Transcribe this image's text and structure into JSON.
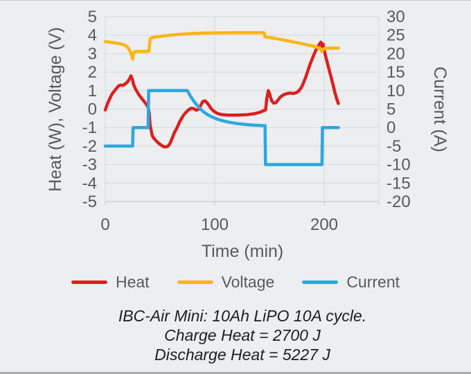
{
  "chart_data": {
    "type": "line",
    "xlabel": "Time (min)",
    "ylabel_left": "Heat (W), Voltage (V)",
    "ylabel_right": "Current (A)",
    "x_range": [
      0,
      250
    ],
    "x_ticks": [
      0,
      100,
      200
    ],
    "left_range": [
      -5,
      5
    ],
    "left_ticks": [
      5,
      4,
      3,
      2,
      1,
      0,
      -1,
      -2,
      -3,
      -4,
      -5
    ],
    "right_range": [
      -20,
      30
    ],
    "right_ticks": [
      30,
      25,
      20,
      15,
      10,
      5,
      0,
      -5,
      -10,
      -15,
      -20
    ],
    "grid": true,
    "legend_position": "bottom",
    "series": [
      {
        "name": "Heat",
        "axis": "left",
        "color": "#dc1f1f",
        "points": [
          [
            0,
            -0.05
          ],
          [
            2,
            0.3
          ],
          [
            4,
            0.55
          ],
          [
            6,
            0.8
          ],
          [
            8,
            0.95
          ],
          [
            10,
            1.1
          ],
          [
            12,
            1.25
          ],
          [
            14,
            1.3
          ],
          [
            16,
            1.28
          ],
          [
            18,
            1.35
          ],
          [
            20,
            1.45
          ],
          [
            22,
            1.62
          ],
          [
            23.5,
            1.8
          ],
          [
            25,
            1.55
          ],
          [
            26,
            1.3
          ],
          [
            28,
            1.05
          ],
          [
            31,
            0.75
          ],
          [
            34,
            0.52
          ],
          [
            37,
            0.3
          ],
          [
            39,
            0.12
          ],
          [
            40,
            -0.15
          ],
          [
            41,
            -0.9
          ],
          [
            43,
            -1.45
          ],
          [
            45,
            -1.62
          ],
          [
            48,
            -1.8
          ],
          [
            51,
            -1.95
          ],
          [
            54,
            -2.05
          ],
          [
            57,
            -2.02
          ],
          [
            59,
            -1.88
          ],
          [
            61,
            -1.6
          ],
          [
            63,
            -1.3
          ],
          [
            66,
            -0.95
          ],
          [
            68,
            -0.68
          ],
          [
            71,
            -0.38
          ],
          [
            73,
            -0.22
          ],
          [
            75,
            -0.1
          ],
          [
            77,
            0.0
          ],
          [
            79,
            0.05
          ],
          [
            81,
            0.02
          ],
          [
            83,
            -0.06
          ],
          [
            85,
            -0.02
          ],
          [
            87,
            0.18
          ],
          [
            89,
            0.4
          ],
          [
            91,
            0.45
          ],
          [
            93,
            0.35
          ],
          [
            95,
            0.18
          ],
          [
            97,
            0.0
          ],
          [
            100,
            -0.15
          ],
          [
            103,
            -0.25
          ],
          [
            107,
            -0.3
          ],
          [
            112,
            -0.33
          ],
          [
            118,
            -0.33
          ],
          [
            124,
            -0.32
          ],
          [
            130,
            -0.3
          ],
          [
            136,
            -0.25
          ],
          [
            141,
            -0.18
          ],
          [
            145,
            -0.08
          ],
          [
            146.5,
            -0.05
          ],
          [
            147.5,
            0.55
          ],
          [
            149,
            1.0
          ],
          [
            150.5,
            0.75
          ],
          [
            152,
            0.45
          ],
          [
            154,
            0.32
          ],
          [
            156,
            0.35
          ],
          [
            158,
            0.5
          ],
          [
            160,
            0.65
          ],
          [
            163,
            0.78
          ],
          [
            166,
            0.84
          ],
          [
            169,
            0.87
          ],
          [
            171,
            0.84
          ],
          [
            173,
            0.86
          ],
          [
            175,
            0.9
          ],
          [
            177,
            1.0
          ],
          [
            179,
            1.15
          ],
          [
            181,
            1.4
          ],
          [
            183,
            1.7
          ],
          [
            185,
            2.05
          ],
          [
            187,
            2.4
          ],
          [
            189,
            2.7
          ],
          [
            191,
            3.0
          ],
          [
            193,
            3.25
          ],
          [
            195,
            3.45
          ],
          [
            197,
            3.62
          ],
          [
            198,
            3.4
          ],
          [
            199,
            3.52
          ],
          [
            200,
            3.2
          ],
          [
            202,
            2.7
          ],
          [
            204,
            2.25
          ],
          [
            206,
            1.8
          ],
          [
            208,
            1.35
          ],
          [
            210,
            0.85
          ],
          [
            212,
            0.45
          ],
          [
            213,
            0.3
          ]
        ]
      },
      {
        "name": "Voltage",
        "axis": "left",
        "color": "#fbb614",
        "points": [
          [
            0,
            3.65
          ],
          [
            4,
            3.62
          ],
          [
            8,
            3.58
          ],
          [
            12,
            3.55
          ],
          [
            16,
            3.5
          ],
          [
            19,
            3.42
          ],
          [
            21,
            3.3
          ],
          [
            23,
            3.1
          ],
          [
            24,
            2.92
          ],
          [
            25,
            2.7
          ],
          [
            25.7,
            3.0
          ],
          [
            27,
            3.1
          ],
          [
            29,
            3.12
          ],
          [
            33,
            3.12
          ],
          [
            37,
            3.12
          ],
          [
            40,
            3.14
          ],
          [
            40.6,
            3.6
          ],
          [
            41.2,
            3.82
          ],
          [
            43,
            3.87
          ],
          [
            46,
            3.9
          ],
          [
            50,
            3.93
          ],
          [
            55,
            3.97
          ],
          [
            60,
            4.0
          ],
          [
            66,
            4.03
          ],
          [
            72,
            4.06
          ],
          [
            80,
            4.09
          ],
          [
            90,
            4.11
          ],
          [
            100,
            4.12
          ],
          [
            115,
            4.13
          ],
          [
            130,
            4.13
          ],
          [
            145,
            4.13
          ],
          [
            146,
            3.9
          ],
          [
            150,
            3.87
          ],
          [
            155,
            3.82
          ],
          [
            160,
            3.77
          ],
          [
            165,
            3.71
          ],
          [
            170,
            3.65
          ],
          [
            175,
            3.59
          ],
          [
            180,
            3.53
          ],
          [
            185,
            3.47
          ],
          [
            190,
            3.41
          ],
          [
            193,
            3.36
          ],
          [
            196,
            3.28
          ],
          [
            198,
            3.12
          ],
          [
            199.5,
            3.26
          ],
          [
            202,
            3.3
          ],
          [
            207,
            3.3
          ],
          [
            213,
            3.3
          ]
        ]
      },
      {
        "name": "Current",
        "axis": "right",
        "color": "#2da7df",
        "points": [
          [
            0,
            -5
          ],
          [
            25,
            -5
          ],
          [
            25.4,
            0
          ],
          [
            39.2,
            0
          ],
          [
            39.6,
            10
          ],
          [
            75,
            10
          ],
          [
            78,
            8.4
          ],
          [
            81,
            7.1
          ],
          [
            84,
            6.0
          ],
          [
            87,
            5.0
          ],
          [
            90,
            4.2
          ],
          [
            94,
            3.4
          ],
          [
            98,
            2.8
          ],
          [
            102,
            2.3
          ],
          [
            106,
            1.95
          ],
          [
            110,
            1.65
          ],
          [
            115,
            1.35
          ],
          [
            120,
            1.1
          ],
          [
            126,
            0.9
          ],
          [
            132,
            0.75
          ],
          [
            138,
            0.62
          ],
          [
            143,
            0.55
          ],
          [
            146,
            0.5
          ],
          [
            146.4,
            -10
          ],
          [
            198,
            -10
          ],
          [
            198.4,
            0
          ],
          [
            213,
            0
          ]
        ]
      }
    ]
  },
  "caption": {
    "lines": [
      "IBC-Air Mini: 10Ah LiPO 10A cycle.",
      "Charge Heat = 2700 J",
      "Discharge Heat = 5227 J"
    ]
  },
  "colors": {
    "grid": "#d3d6d7",
    "axis_text": "#595959",
    "caption_text": "#1e1e1e",
    "background": "#edeef0"
  }
}
